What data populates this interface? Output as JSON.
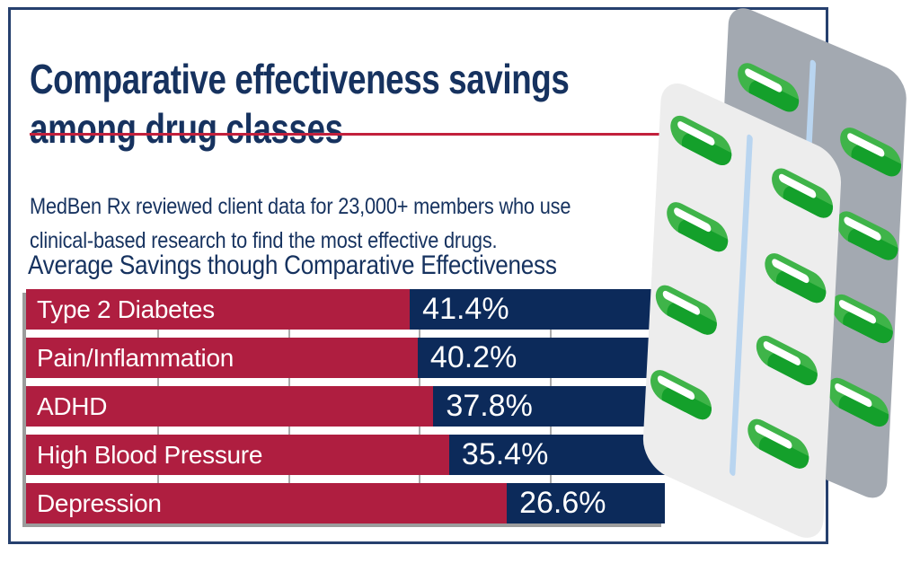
{
  "header": {
    "lines": [
      "Comparative effectiveness savings",
      "among drug classes"
    ]
  },
  "intro": {
    "lines": [
      "MedBen Rx reviewed client data for 23,000+ members who use",
      "clinical-based research to find the most effective drugs."
    ]
  },
  "chart_data": {
    "type": "bar",
    "title": "Average Savings though Comparative Effectiveness",
    "categories": [
      "Type 2 Diabetes",
      "Pain/Inflammation",
      "ADHD",
      "High Blood Pressure",
      "Depression"
    ],
    "values": [
      41.4,
      40.2,
      37.8,
      35.4,
      26.6
    ],
    "value_labels": [
      "41.4%",
      "40.2%",
      "37.8%",
      "35.4%",
      "26.6%"
    ],
    "unit": "%",
    "orientation": "horizontal",
    "note": "red segment width encodes 100 minus value; navy segment carries the value label",
    "axis": {
      "min": 0,
      "max": 100,
      "gridlines": [
        20,
        40,
        60,
        80
      ],
      "gridlines_visible_in_gaps": true
    },
    "legend": "none",
    "colors": {
      "red_segment": "#AF1E40",
      "navy_segment": "#0C2A5A",
      "label_text": "#FFFFFF",
      "shadow": "#9C9C9C",
      "tick": "#ABABAB"
    }
  },
  "theme": {
    "title_color": "#16325F",
    "underline_color": "#C2203C",
    "border_color": "#26406E",
    "background": "#FFFFFF"
  },
  "illustration": {
    "name": "pill-blister-packs",
    "front_pack_color": "#EDEDED",
    "back_pack_color": "#A3A9B1",
    "pill_light_green": "#3FB449",
    "pill_dark_green": "#14A02B",
    "divider_color": "#B9D5F0",
    "pills_front_pack": 8,
    "pills_back_pack": 5
  }
}
